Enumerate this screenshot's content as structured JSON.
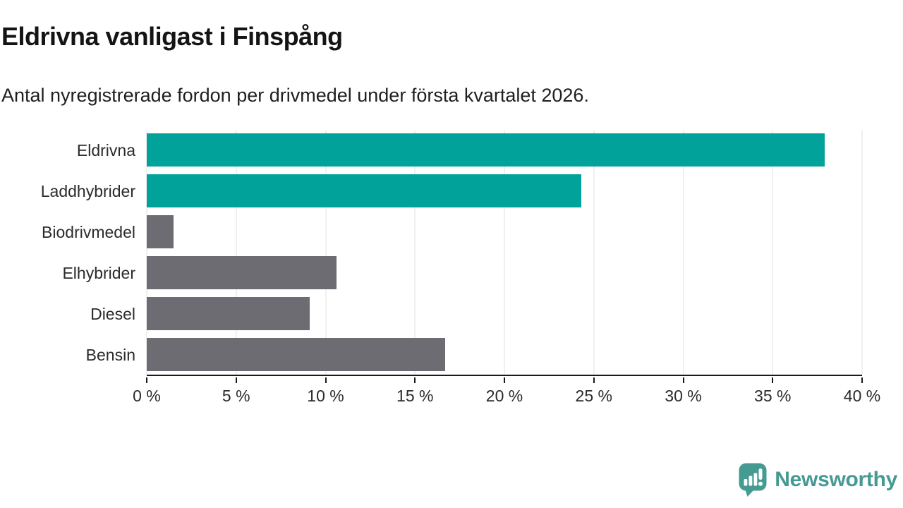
{
  "header": {
    "title": "Eldrivna vanligast i Finspång",
    "subtitle": "Antal nyregistrerade fordon per drivmedel under första kvartalet 2026."
  },
  "chart_data": {
    "type": "bar",
    "orientation": "horizontal",
    "title": "Eldrivna vanligast i Finspång",
    "subtitle": "Antal nyregistrerade fordon per drivmedel under första kvartalet 2026.",
    "categories": [
      "Eldrivna",
      "Laddhybrider",
      "Biodrivmedel",
      "Elhybrider",
      "Diesel",
      "Bensin"
    ],
    "values": [
      37.9,
      24.3,
      1.5,
      10.6,
      9.1,
      16.7
    ],
    "unit": "%",
    "bar_colors": [
      "#00a29a",
      "#00a29a",
      "#6d6c72",
      "#6d6c72",
      "#6d6c72",
      "#6d6c72"
    ],
    "xlabel": "",
    "ylabel": "",
    "xlim": [
      0,
      40
    ],
    "x_ticks": [
      0,
      5,
      10,
      15,
      20,
      25,
      30,
      35,
      40
    ],
    "x_tick_labels": [
      "0 %",
      "5 %",
      "10 %",
      "15 %",
      "20 %",
      "25 %",
      "30 %",
      "35 %",
      "40 %"
    ],
    "grid": "vertical",
    "legend": "none"
  },
  "colors": {
    "accent_teal": "#00a29a",
    "neutral_gray": "#6d6c72",
    "gridline": "#e2e2e2",
    "axis": "#1a1a1a",
    "text": "#1f1f1f",
    "logo_teal": "#459a92"
  },
  "footer": {
    "brand": "Newsworthy",
    "logo_icon": "bar-chart-speech-bubble-icon"
  }
}
